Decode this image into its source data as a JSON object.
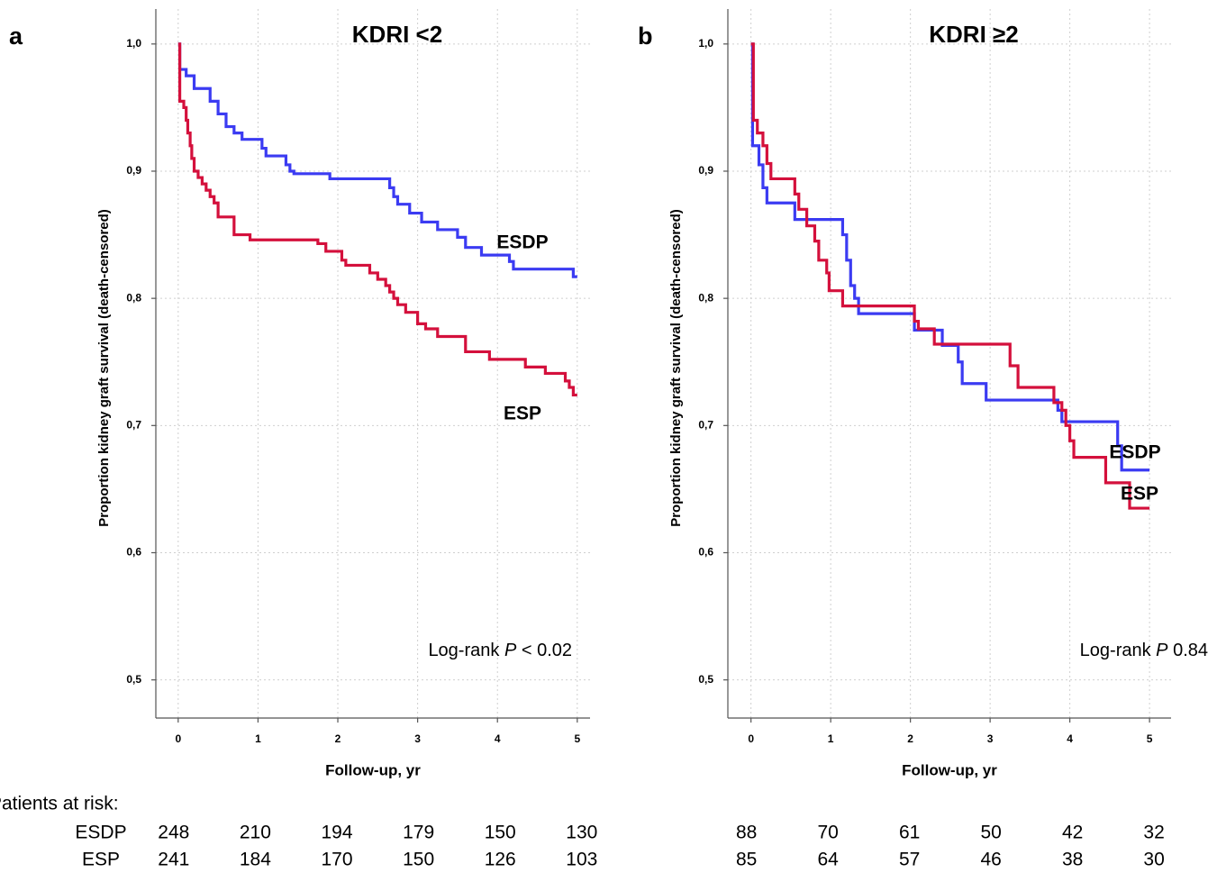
{
  "chart_data": [
    {
      "type": "line",
      "step": "post",
      "panel_label": "a",
      "title": "KDRI <2",
      "ylabel": "Proportion kidney graft survival (death-censored)",
      "xlabel": "Follow-up, yr",
      "annotation": [
        "Log-rank ",
        "P",
        " < 0.02"
      ],
      "xlim": [
        -0.28,
        5.16
      ],
      "ylim": [
        0.47,
        1.0275
      ],
      "xticks": [
        0,
        1,
        2,
        3,
        4,
        5
      ],
      "yticks": [
        {
          "value": 0.5,
          "label": "0,5"
        },
        {
          "value": 0.6,
          "label": "0,6"
        },
        {
          "value": 0.7,
          "label": "0,7"
        },
        {
          "value": 0.8,
          "label": "0,8"
        },
        {
          "value": 0.9,
          "label": "0,9"
        },
        {
          "value": 1.0,
          "label": "1,0"
        }
      ],
      "grid": true,
      "series": [
        {
          "name": "ESDP",
          "color": "#3b3bf2",
          "label_color": "#1e6fd0",
          "x": [
            0,
            0.02,
            0.1,
            0.2,
            0.4,
            0.5,
            0.6,
            0.7,
            0.8,
            1.05,
            1.1,
            1.35,
            1.4,
            1.45,
            1.9,
            2.65,
            2.7,
            2.75,
            2.9,
            3.05,
            3.25,
            3.5,
            3.6,
            3.8,
            4.15,
            4.2,
            4.95,
            5
          ],
          "values": [
            1.0,
            0.98,
            0.975,
            0.965,
            0.955,
            0.945,
            0.935,
            0.93,
            0.925,
            0.918,
            0.912,
            0.905,
            0.9,
            0.898,
            0.894,
            0.887,
            0.88,
            0.874,
            0.867,
            0.86,
            0.854,
            0.848,
            0.84,
            0.834,
            0.829,
            0.823,
            0.817,
            0.817
          ]
        },
        {
          "name": "ESP",
          "color": "#d4103c",
          "label_color": "#e0201c",
          "x": [
            0,
            0.02,
            0.07,
            0.1,
            0.12,
            0.15,
            0.17,
            0.2,
            0.25,
            0.3,
            0.35,
            0.4,
            0.45,
            0.5,
            0.7,
            0.9,
            1.75,
            1.85,
            2.05,
            2.1,
            2.4,
            2.5,
            2.6,
            2.65,
            2.7,
            2.75,
            2.85,
            3.0,
            3.1,
            3.25,
            3.6,
            3.9,
            4.35,
            4.6,
            4.85,
            4.9,
            4.95,
            5
          ],
          "values": [
            1.0,
            0.955,
            0.95,
            0.94,
            0.93,
            0.92,
            0.91,
            0.9,
            0.895,
            0.89,
            0.885,
            0.88,
            0.875,
            0.864,
            0.85,
            0.846,
            0.843,
            0.837,
            0.83,
            0.826,
            0.82,
            0.815,
            0.81,
            0.805,
            0.8,
            0.795,
            0.789,
            0.78,
            0.776,
            0.77,
            0.758,
            0.752,
            0.746,
            0.741,
            0.735,
            0.73,
            0.724,
            0.724
          ]
        }
      ],
      "at_risk": [
        {
          "name": "ESDP",
          "values": [
            248,
            210,
            194,
            179,
            150,
            130
          ]
        },
        {
          "name": "ESP",
          "values": [
            241,
            184,
            170,
            150,
            126,
            103
          ]
        }
      ]
    },
    {
      "type": "line",
      "step": "post",
      "panel_label": "b",
      "title": "KDRI ≥2",
      "ylabel": "Proportion kidney graft survival (death-censored)",
      "xlabel": "Follow-up, yr",
      "annotation": [
        "Log-rank ",
        "P",
        " 0.84"
      ],
      "xlim": [
        -0.29,
        5.27
      ],
      "ylim": [
        0.47,
        1.0275
      ],
      "xticks": [
        0,
        1,
        2,
        3,
        4,
        5
      ],
      "yticks": [
        {
          "value": 0.5,
          "label": "0,5"
        },
        {
          "value": 0.6,
          "label": "0,6"
        },
        {
          "value": 0.7,
          "label": "0,7"
        },
        {
          "value": 0.8,
          "label": "0,8"
        },
        {
          "value": 0.9,
          "label": "0,9"
        },
        {
          "value": 1.0,
          "label": "1,0"
        }
      ],
      "grid": true,
      "series": [
        {
          "name": "ESDP",
          "color": "#3b3bf2",
          "label_color": "#1e6fd0",
          "x": [
            0,
            0.02,
            0.1,
            0.15,
            0.2,
            0.55,
            1.15,
            1.2,
            1.25,
            1.3,
            1.35,
            2.05,
            2.4,
            2.6,
            2.65,
            2.95,
            3.85,
            3.9,
            4.6,
            4.65,
            5
          ],
          "values": [
            1.0,
            0.92,
            0.905,
            0.887,
            0.875,
            0.862,
            0.85,
            0.83,
            0.81,
            0.8,
            0.788,
            0.775,
            0.763,
            0.75,
            0.733,
            0.72,
            0.712,
            0.703,
            0.684,
            0.665,
            0.665
          ]
        },
        {
          "name": "ESP",
          "color": "#d4103c",
          "label_color": "#e0201c",
          "x": [
            0,
            0.03,
            0.08,
            0.15,
            0.2,
            0.25,
            0.55,
            0.6,
            0.7,
            0.8,
            0.85,
            0.95,
            0.98,
            1.15,
            2.05,
            2.1,
            2.3,
            3.25,
            3.35,
            3.8,
            3.9,
            3.95,
            4.0,
            4.05,
            4.45,
            4.75,
            5
          ],
          "values": [
            1.0,
            0.94,
            0.93,
            0.92,
            0.906,
            0.894,
            0.882,
            0.87,
            0.857,
            0.845,
            0.83,
            0.82,
            0.806,
            0.794,
            0.782,
            0.776,
            0.764,
            0.747,
            0.73,
            0.718,
            0.712,
            0.7,
            0.688,
            0.675,
            0.655,
            0.635,
            0.635
          ]
        }
      ],
      "at_risk": [
        {
          "name": "ESDP",
          "values": [
            88,
            70,
            61,
            50,
            42,
            32
          ]
        },
        {
          "name": "ESP",
          "values": [
            85,
            64,
            57,
            46,
            38,
            30
          ]
        }
      ]
    }
  ],
  "risk_table_title": "Patients at risk:"
}
